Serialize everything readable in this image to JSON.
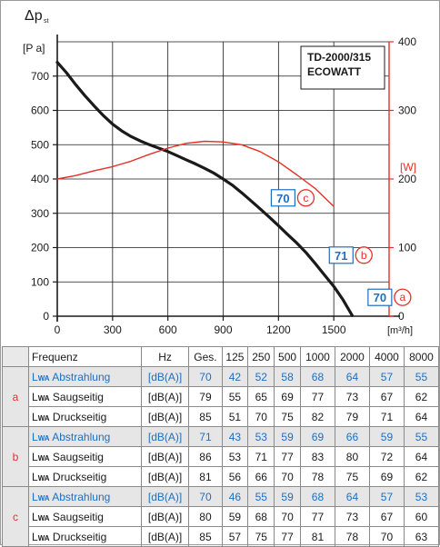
{
  "chart_data": {
    "type": "line",
    "title": "TD-2000/315\nECOWATT",
    "title_lines": [
      "TD-2000/315",
      "ECOWATT"
    ],
    "y_axis_symbol": "Δp",
    "y_axis_sub": "st",
    "y_unit": "[P a]",
    "x_unit": "[m³/h]",
    "y2_unit": "[W]",
    "xlim": [
      0,
      1800
    ],
    "ylim": [
      0,
      800
    ],
    "y2lim": [
      0,
      400
    ],
    "x_ticks": [
      0,
      300,
      600,
      900,
      1200,
      1500
    ],
    "y_ticks": [
      0,
      100,
      200,
      300,
      400,
      500,
      600,
      700
    ],
    "y2_ticks": [
      0,
      100,
      200,
      300,
      400
    ],
    "grid": true,
    "series": [
      {
        "axis": "left",
        "color": "#1a1a1a",
        "points": [
          [
            0,
            740
          ],
          [
            50,
            710
          ],
          [
            100,
            675
          ],
          [
            150,
            643
          ],
          [
            200,
            613
          ],
          [
            250,
            585
          ],
          [
            300,
            560
          ],
          [
            350,
            540
          ],
          [
            400,
            524
          ],
          [
            450,
            511
          ],
          [
            500,
            500
          ],
          [
            550,
            490
          ],
          [
            600,
            480
          ],
          [
            650,
            468
          ],
          [
            700,
            456
          ],
          [
            750,
            444
          ],
          [
            800,
            431
          ],
          [
            850,
            417
          ],
          [
            900,
            400
          ],
          [
            950,
            382
          ],
          [
            1000,
            360
          ],
          [
            1050,
            337
          ],
          [
            1100,
            313
          ],
          [
            1150,
            289
          ],
          [
            1200,
            264
          ],
          [
            1250,
            238
          ],
          [
            1300,
            213
          ],
          [
            1350,
            185
          ],
          [
            1400,
            153
          ],
          [
            1450,
            120
          ],
          [
            1500,
            87
          ],
          [
            1550,
            48
          ],
          [
            1600,
            2
          ]
        ]
      },
      {
        "axis": "right",
        "color": "#e63027",
        "points": [
          [
            0,
            200
          ],
          [
            100,
            205
          ],
          [
            200,
            212
          ],
          [
            300,
            218
          ],
          [
            400,
            226
          ],
          [
            500,
            236
          ],
          [
            600,
            245
          ],
          [
            700,
            252
          ],
          [
            800,
            255
          ],
          [
            900,
            254
          ],
          [
            1000,
            250
          ],
          [
            1100,
            240
          ],
          [
            1200,
            225
          ],
          [
            1300,
            206
          ],
          [
            1400,
            186
          ],
          [
            1500,
            160
          ]
        ]
      }
    ],
    "annotations": [
      {
        "value": "70",
        "letter": "c",
        "x": 1225,
        "y": 345
      },
      {
        "value": "71",
        "letter": "b",
        "x": 1540,
        "y": 178
      },
      {
        "value": "70",
        "letter": "a",
        "x": 1750,
        "y": 55
      }
    ]
  },
  "table": {
    "headers": [
      "Frequenz",
      "Hz",
      "Ges.",
      "125",
      "250",
      "500",
      "1000",
      "2000",
      "4000",
      "8000"
    ],
    "groups": [
      {
        "label": "a",
        "rows": [
          {
            "name": "Abstrahlung",
            "unit": "[dB(A)]",
            "values": [
              "70",
              "42",
              "52",
              "58",
              "68",
              "64",
              "57",
              "55"
            ]
          },
          {
            "name": "Saugseitig",
            "unit": "[dB(A)]",
            "values": [
              "79",
              "55",
              "65",
              "69",
              "77",
              "73",
              "67",
              "62"
            ]
          },
          {
            "name": "Druckseitig",
            "unit": "[dB(A)]",
            "values": [
              "85",
              "51",
              "70",
              "75",
              "82",
              "79",
              "71",
              "64"
            ]
          }
        ]
      },
      {
        "label": "b",
        "rows": [
          {
            "name": "Abstrahlung",
            "unit": "[dB(A)]",
            "values": [
              "71",
              "43",
              "53",
              "59",
              "69",
              "66",
              "59",
              "55"
            ]
          },
          {
            "name": "Saugseitig",
            "unit": "[dB(A)]",
            "values": [
              "86",
              "53",
              "71",
              "77",
              "83",
              "80",
              "72",
              "64"
            ]
          },
          {
            "name": "Druckseitig",
            "unit": "[dB(A)]",
            "values": [
              "81",
              "56",
              "66",
              "70",
              "78",
              "75",
              "69",
              "62"
            ]
          }
        ]
      },
      {
        "label": "c",
        "rows": [
          {
            "name": "Abstrahlung",
            "unit": "[dB(A)]",
            "values": [
              "70",
              "46",
              "55",
              "59",
              "68",
              "64",
              "57",
              "53"
            ]
          },
          {
            "name": "Saugseitig",
            "unit": "[dB(A)]",
            "values": [
              "80",
              "59",
              "68",
              "70",
              "77",
              "73",
              "67",
              "60"
            ]
          },
          {
            "name": "Druckseitig",
            "unit": "[dB(A)]",
            "values": [
              "85",
              "57",
              "75",
              "77",
              "81",
              "78",
              "70",
              "63"
            ]
          }
        ]
      }
    ],
    "lwa_prefix": "L",
    "lwa_sub": "WA"
  },
  "colors": {
    "blue": "#1f6fbf",
    "red": "#e63027",
    "curve": "#1a1a1a",
    "grid": "#1a1a1a",
    "panel": "#e6e6e6"
  }
}
